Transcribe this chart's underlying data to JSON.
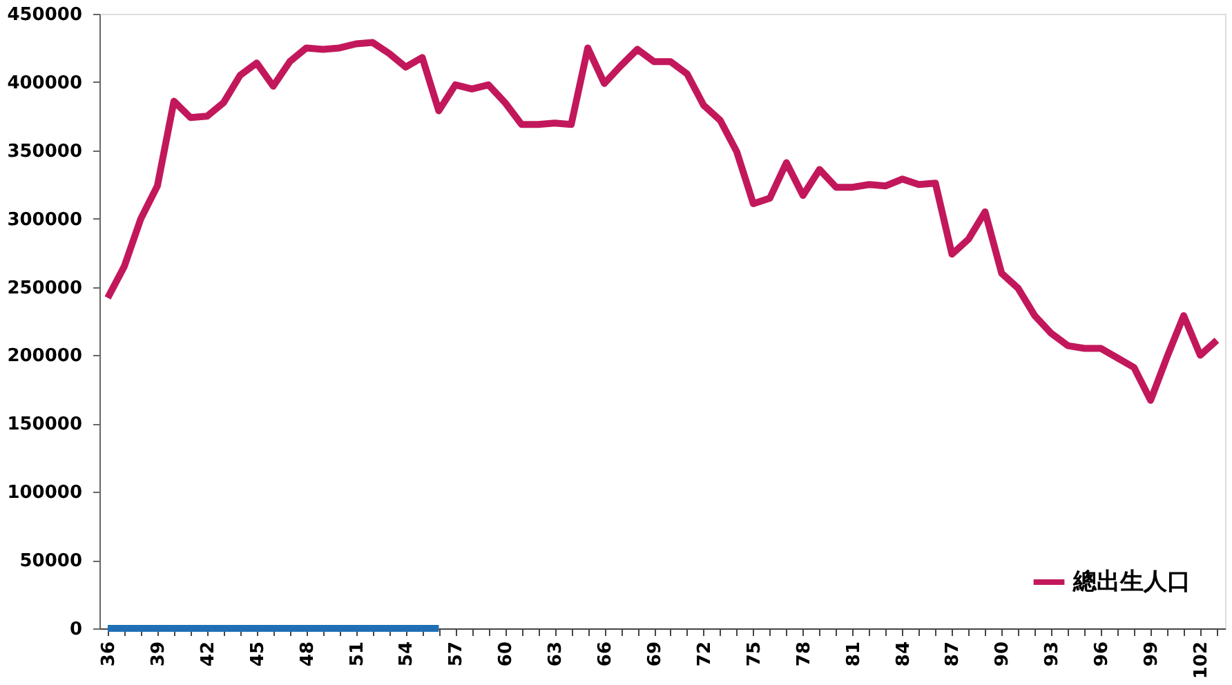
{
  "chart_data": {
    "type": "line",
    "categories": [
      "36",
      null,
      null,
      "39",
      null,
      null,
      "42",
      null,
      null,
      "45",
      null,
      null,
      "48",
      null,
      null,
      "51",
      null,
      null,
      "54",
      null,
      null,
      "57",
      null,
      null,
      "60",
      null,
      null,
      "63",
      null,
      null,
      "66",
      null,
      null,
      "69",
      null,
      null,
      "72",
      null,
      null,
      "75",
      null,
      null,
      "78",
      null,
      null,
      "81",
      null,
      null,
      "84",
      null,
      null,
      "87",
      null,
      null,
      "90",
      null,
      null,
      "93",
      null,
      null,
      "96",
      null,
      null,
      "99",
      null,
      null,
      "102",
      null
    ],
    "series": [
      {
        "name": "總出生人口",
        "color": "#c2185b",
        "values": [
          242000,
          265000,
          300000,
          324000,
          386000,
          374000,
          375000,
          385000,
          405000,
          414000,
          397000,
          415000,
          425000,
          424000,
          425000,
          428000,
          429000,
          421000,
          411000,
          418000,
          379000,
          398000,
          395000,
          398000,
          385000,
          369000,
          369000,
          370000,
          369000,
          425000,
          399000,
          412000,
          424000,
          415000,
          415000,
          406000,
          383000,
          372000,
          349000,
          311000,
          315000,
          341000,
          317000,
          336000,
          323000,
          323000,
          325000,
          324000,
          329000,
          325000,
          326000,
          274000,
          285000,
          305000,
          260000,
          249000,
          229000,
          216000,
          207000,
          205000,
          205000,
          198000,
          191000,
          167000,
          199000,
          229000,
          200000,
          211000
        ]
      },
      {
        "color": "#1f6fb5",
        "values": [
          0,
          0,
          0,
          0,
          0,
          0,
          0,
          0,
          0,
          0,
          0,
          0,
          0,
          0,
          0,
          0,
          0,
          0,
          0,
          0,
          0,
          null,
          null,
          null,
          null,
          null,
          null,
          null,
          null,
          null,
          null,
          null,
          null,
          null,
          null,
          null,
          null,
          null,
          null,
          null,
          null,
          null,
          null,
          null,
          null,
          null,
          null,
          null,
          null,
          null,
          null,
          null,
          null,
          null,
          null,
          null,
          null,
          null,
          null,
          null,
          null,
          null,
          null,
          null,
          null,
          null,
          null,
          null
        ]
      }
    ],
    "ylim": [
      0,
      450000
    ],
    "yticks": [
      0,
      50000,
      100000,
      150000,
      200000,
      250000,
      300000,
      350000,
      400000,
      450000
    ],
    "grid": false,
    "legend": "bottom right"
  }
}
